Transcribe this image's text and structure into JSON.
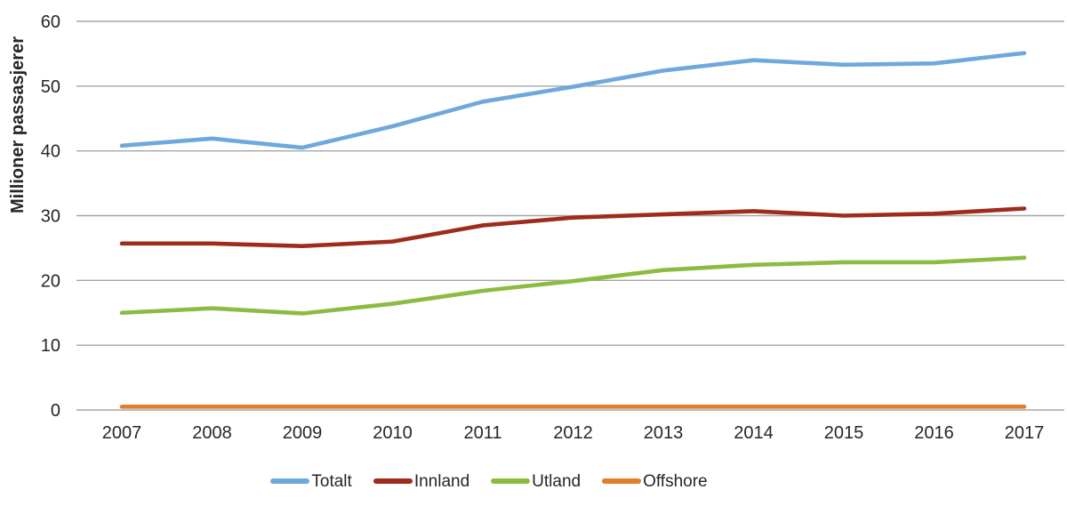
{
  "chart_data": {
    "type": "line",
    "title": "",
    "ylabel": "Millioner passasjerer",
    "xlabel": "",
    "x": [
      2007,
      2008,
      2009,
      2010,
      2011,
      2012,
      2013,
      2014,
      2015,
      2016,
      2017
    ],
    "ylim": [
      0,
      60
    ],
    "y_ticks": [
      0,
      10,
      20,
      30,
      40,
      50,
      60
    ],
    "grid": "horizontal",
    "legend_position": "bottom",
    "series": [
      {
        "name": "Totalt",
        "color": "#6FA8DC",
        "values": [
          40.8,
          41.9,
          40.5,
          43.8,
          47.6,
          49.9,
          52.4,
          54.0,
          53.3,
          53.5,
          55.1
        ]
      },
      {
        "name": "Innland",
        "color": "#9E2B1C",
        "values": [
          25.7,
          25.7,
          25.3,
          26.0,
          28.5,
          29.7,
          30.2,
          30.7,
          30.0,
          30.3,
          31.1
        ]
      },
      {
        "name": "Utland",
        "color": "#8DBB40",
        "values": [
          15.0,
          15.7,
          14.9,
          16.4,
          18.4,
          19.9,
          21.6,
          22.4,
          22.8,
          22.8,
          23.5
        ]
      },
      {
        "name": "Offshore",
        "color": "#E07E2C",
        "values": [
          0.5,
          0.5,
          0.5,
          0.5,
          0.5,
          0.5,
          0.5,
          0.5,
          0.5,
          0.5,
          0.5
        ]
      }
    ],
    "colors": {
      "gridline": "#A6A6A6",
      "text": "#262626",
      "background": "#FFFFFF"
    }
  }
}
